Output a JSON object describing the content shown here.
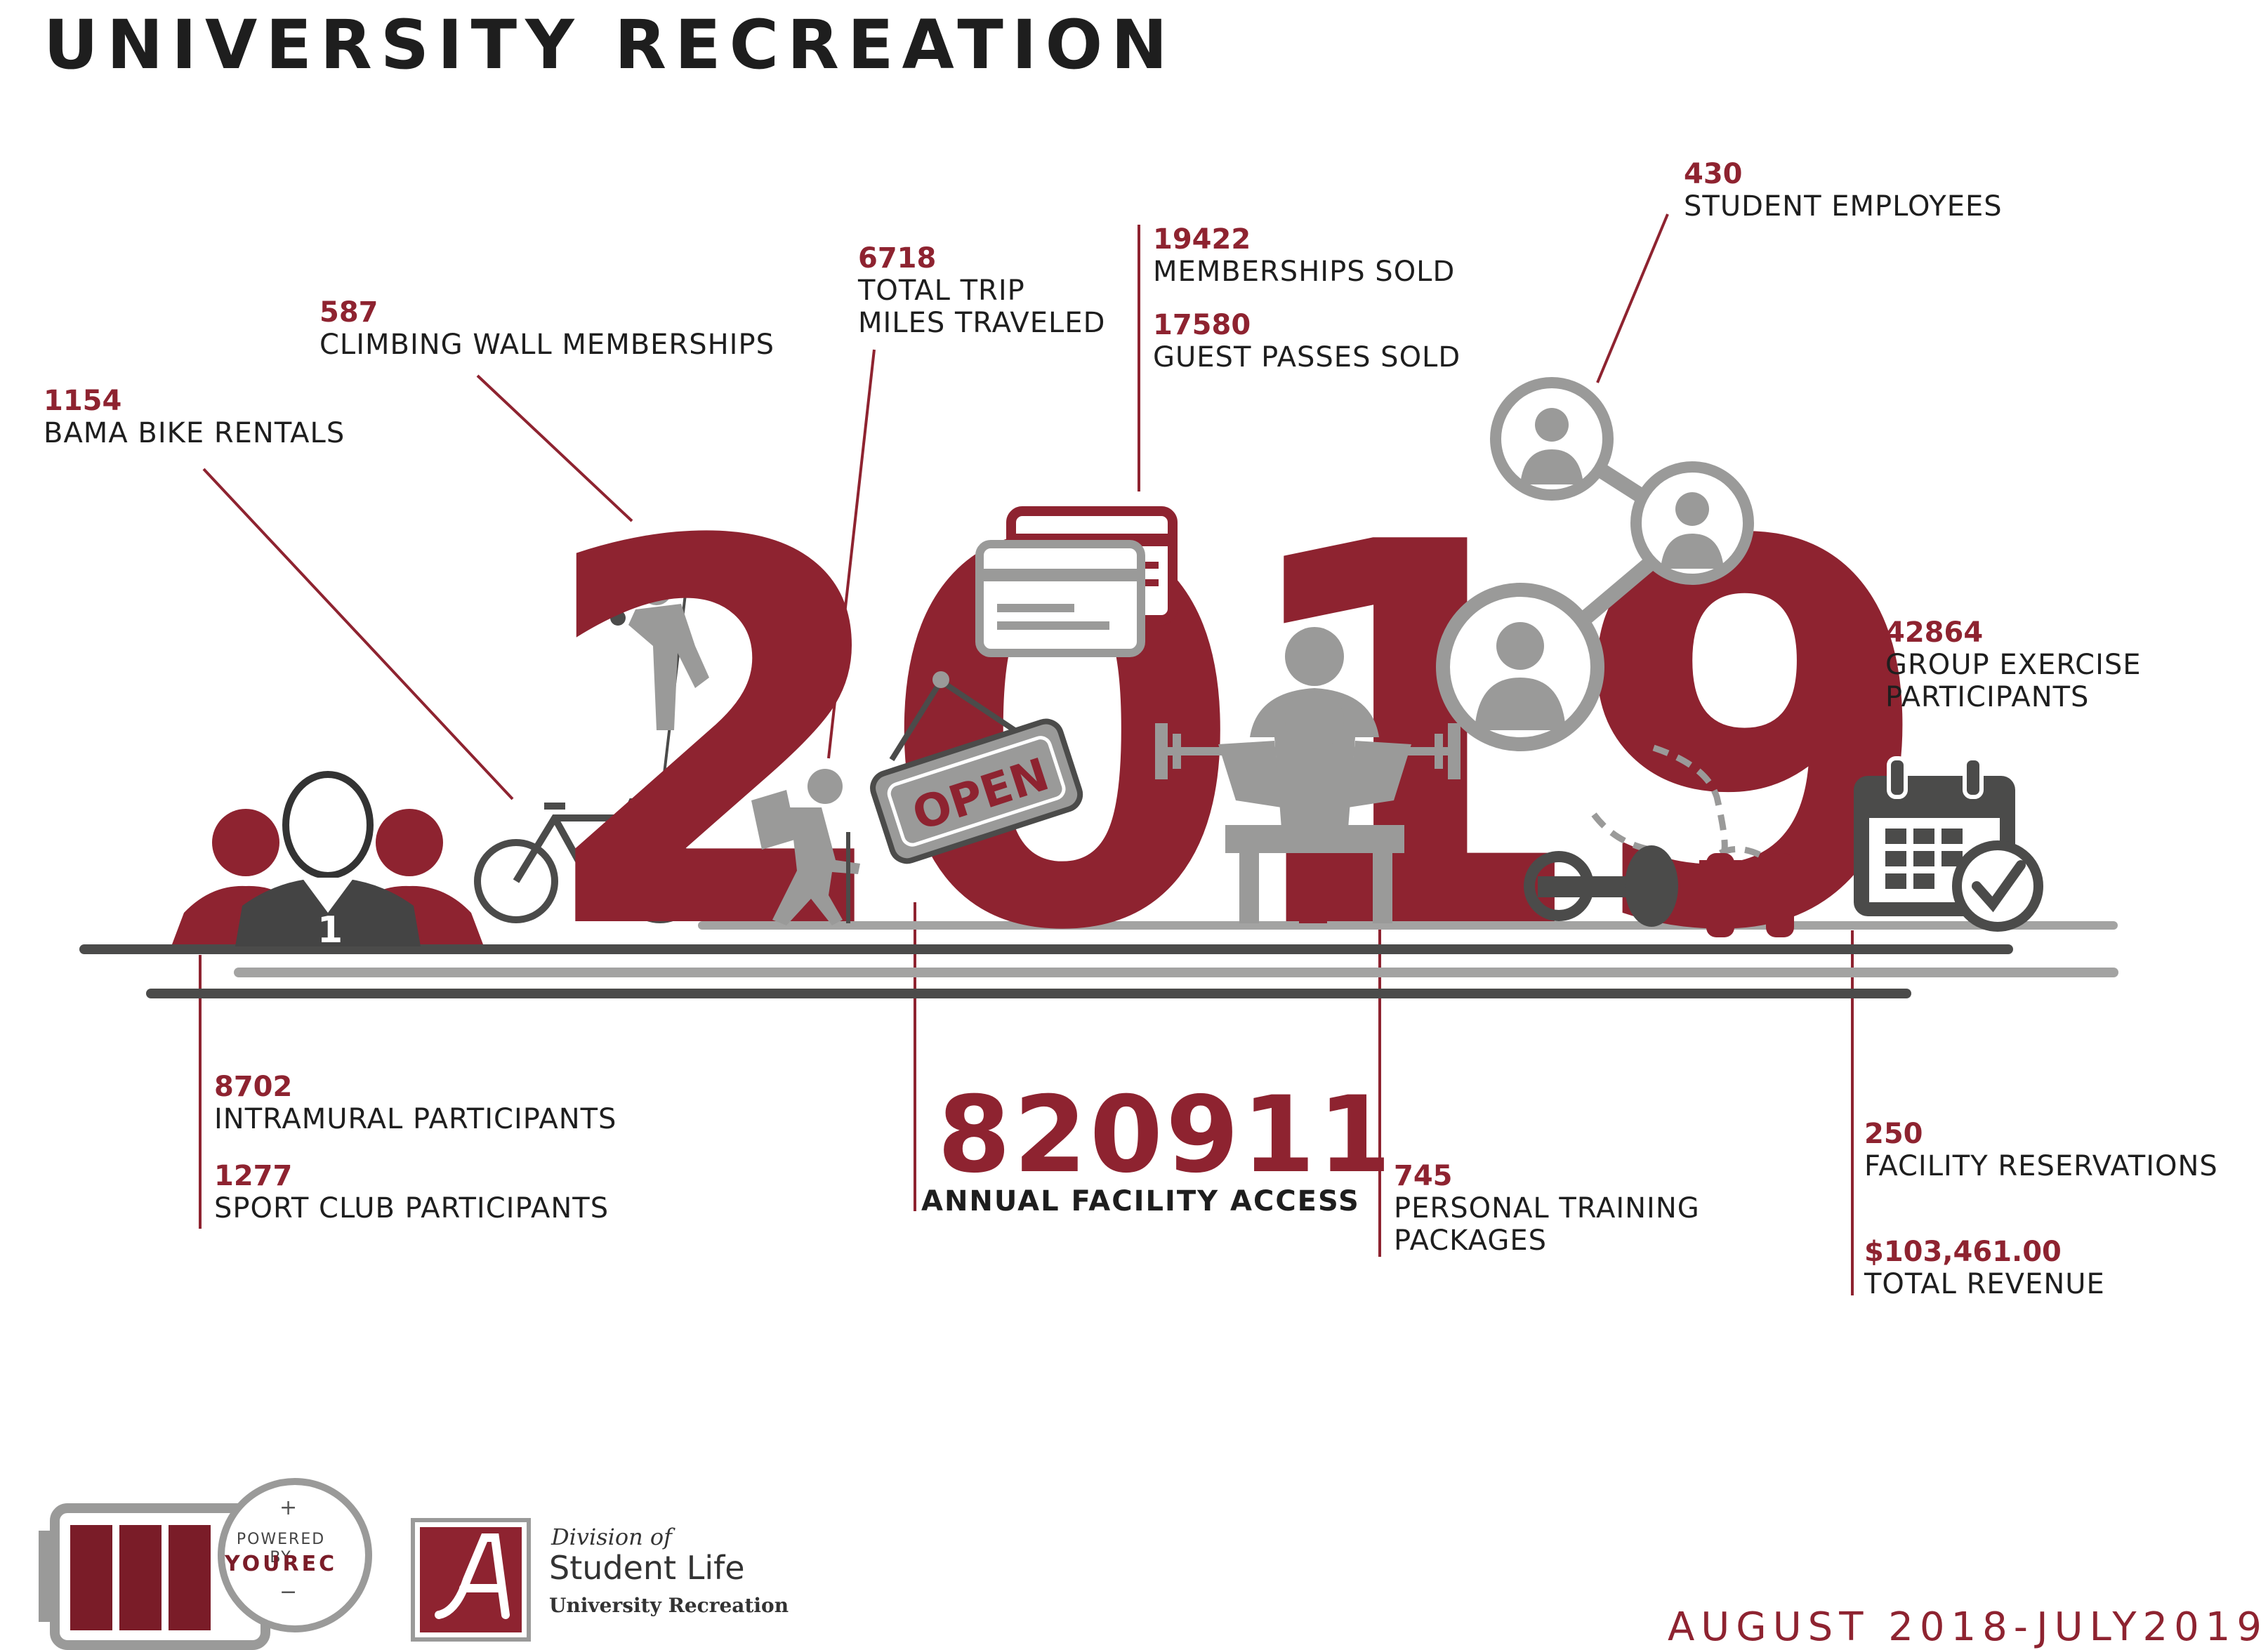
{
  "title": "UNIVERSITY RECREATION",
  "year": "2019",
  "stats": {
    "bike": {
      "number": "1154",
      "label": "BAMA BIKE RENTALS"
    },
    "climbing": {
      "number": "587",
      "label": "CLIMBING WALL MEMBERSHIPS"
    },
    "trip": {
      "number": "6718",
      "label_1": "TOTAL TRIP",
      "label_2": "MILES TRAVELED"
    },
    "memberships": {
      "number": "19422",
      "label": "MEMBERSHIPS SOLD"
    },
    "guest": {
      "number": "17580",
      "label": "GUEST PASSES SOLD"
    },
    "employees": {
      "number": "430",
      "label": "STUDENT EMPLOYEES"
    },
    "group": {
      "number": "42864",
      "label_1": "GROUP EXERCISE",
      "label_2": "PARTICIPANTS"
    },
    "intramural": {
      "number": "8702",
      "label": "INTRAMURAL PARTICIPANTS"
    },
    "sportclub": {
      "number": "1277",
      "label": "SPORT CLUB PARTICIPANTS"
    },
    "facility_access": {
      "number": "820911",
      "label": "ANNUAL FACILITY ACCESS"
    },
    "training": {
      "number": "745",
      "label_1": "PERSONAL TRAINING",
      "label_2": "PACKAGES"
    },
    "reservations": {
      "number": "250",
      "label": "FACILITY RESERVATIONS"
    },
    "revenue": {
      "number": "$103,461.00",
      "label": "TOTAL REVENUE"
    }
  },
  "icons": {
    "team_badge": "1",
    "open_sign": "OPEN"
  },
  "footer": {
    "powered_by": "POWERED BY",
    "yourec": "YOUREC",
    "plus": "+",
    "minus": "−",
    "division_of": "Division of",
    "student_life": "Student Life",
    "university_recreation": "University Recreation",
    "date_range": "AUGUST 2018-JULY2019"
  },
  "colors": {
    "crimson": "#8e2330",
    "gray": "#9a9a99",
    "dark": "#4b4b4a",
    "text": "#1e1e1e"
  }
}
